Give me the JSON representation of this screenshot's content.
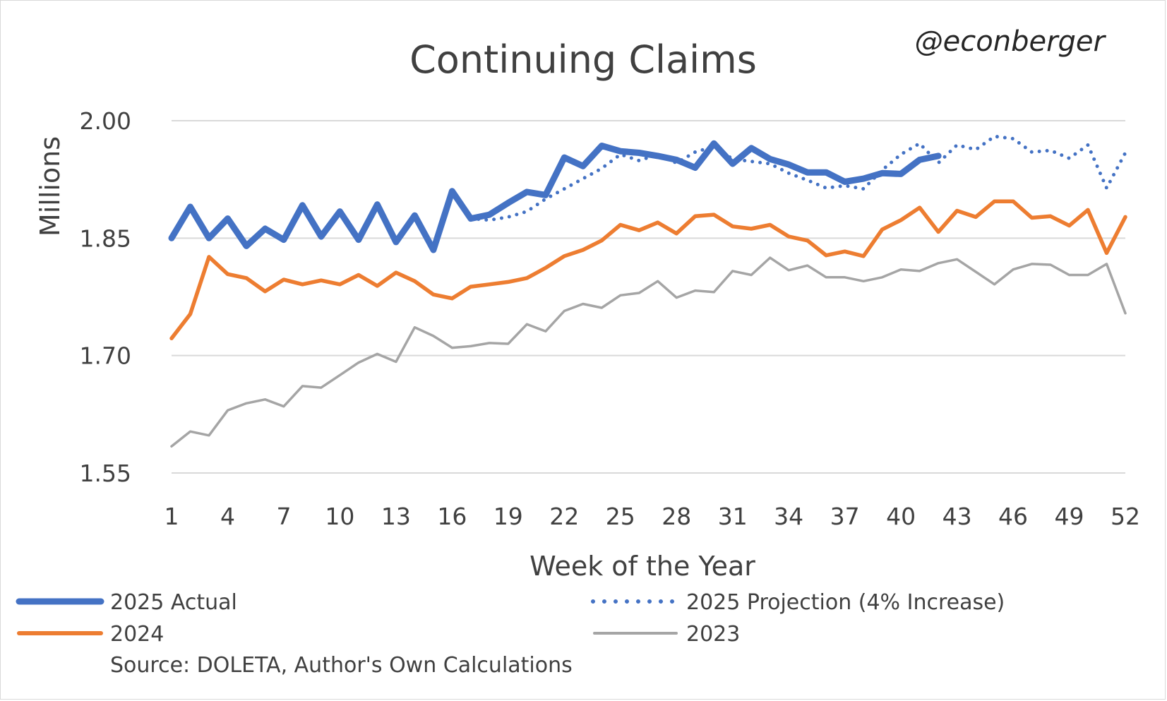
{
  "handle": "@econberger",
  "source": "Source: DOLETA, Author's Own Calculations",
  "chart_data": {
    "type": "line",
    "title": "Continuing Claims",
    "xlabel": "Week of the Year",
    "ylabel": "Millions",
    "ylim": [
      1.55,
      2.0
    ],
    "yticks": [
      "2.00",
      "1.85",
      "1.70",
      "1.55"
    ],
    "xticks": [
      "1",
      "4",
      "7",
      "10",
      "13",
      "16",
      "19",
      "22",
      "25",
      "28",
      "31",
      "34",
      "37",
      "40",
      "43",
      "46",
      "49",
      "52"
    ],
    "xlim": [
      1,
      52
    ],
    "grid": true,
    "legend_position": "bottom",
    "series": [
      {
        "name": "2023",
        "color": "#a5a5a5",
        "style": "solid-thin",
        "x_start": 1,
        "values": [
          1.584,
          1.603,
          1.598,
          1.63,
          1.639,
          1.644,
          1.635,
          1.661,
          1.659,
          1.675,
          1.691,
          1.702,
          1.692,
          1.736,
          1.725,
          1.71,
          1.712,
          1.716,
          1.715,
          1.74,
          1.731,
          1.757,
          1.766,
          1.761,
          1.777,
          1.78,
          1.795,
          1.774,
          1.783,
          1.781,
          1.808,
          1.803,
          1.825,
          1.809,
          1.815,
          1.8,
          1.8,
          1.795,
          1.8,
          1.81,
          1.808,
          1.818,
          1.823,
          1.807,
          1.791,
          1.81,
          1.817,
          1.816,
          1.803,
          1.803,
          1.817,
          1.754
        ]
      },
      {
        "name": "2024",
        "color": "#ed7d31",
        "style": "solid",
        "x_start": 1,
        "values": [
          1.722,
          1.753,
          1.826,
          1.804,
          1.799,
          1.782,
          1.797,
          1.791,
          1.796,
          1.791,
          1.803,
          1.789,
          1.806,
          1.795,
          1.778,
          1.773,
          1.788,
          1.791,
          1.794,
          1.799,
          1.812,
          1.827,
          1.835,
          1.847,
          1.867,
          1.86,
          1.87,
          1.856,
          1.878,
          1.88,
          1.865,
          1.862,
          1.867,
          1.852,
          1.847,
          1.828,
          1.833,
          1.827,
          1.861,
          1.873,
          1.889,
          1.858,
          1.885,
          1.877,
          1.897,
          1.897,
          1.876,
          1.878,
          1.866,
          1.886,
          1.831,
          1.877
        ]
      },
      {
        "name": "2025 Projection (4% Increase)",
        "color": "#4472c4",
        "style": "dotted",
        "x_start": 17,
        "values": [
          1.875,
          1.873,
          1.877,
          1.884,
          1.9,
          1.913,
          1.926,
          1.939,
          1.957,
          1.949,
          1.957,
          1.946,
          1.96,
          1.967,
          1.951,
          1.948,
          1.945,
          1.933,
          1.924,
          1.914,
          1.917,
          1.913,
          1.937,
          1.957,
          1.971,
          1.946,
          1.969,
          1.963,
          1.98,
          1.977,
          1.96,
          1.962,
          1.952,
          1.969,
          1.914,
          1.959
        ]
      },
      {
        "name": "2025 Actual",
        "color": "#4472c4",
        "style": "solid-thick",
        "x_start": 1,
        "values": [
          1.85,
          1.89,
          1.85,
          1.875,
          1.84,
          1.862,
          1.848,
          1.892,
          1.852,
          1.884,
          1.848,
          1.893,
          1.845,
          1.879,
          1.835,
          1.91,
          1.875,
          1.88,
          1.895,
          1.909,
          1.905,
          1.953,
          1.942,
          1.968,
          1.961,
          1.959,
          1.955,
          1.95,
          1.94,
          1.971,
          1.945,
          1.965,
          1.951,
          1.944,
          1.934,
          1.934,
          1.922,
          1.926,
          1.933,
          1.932,
          1.95,
          1.955
        ]
      }
    ]
  }
}
